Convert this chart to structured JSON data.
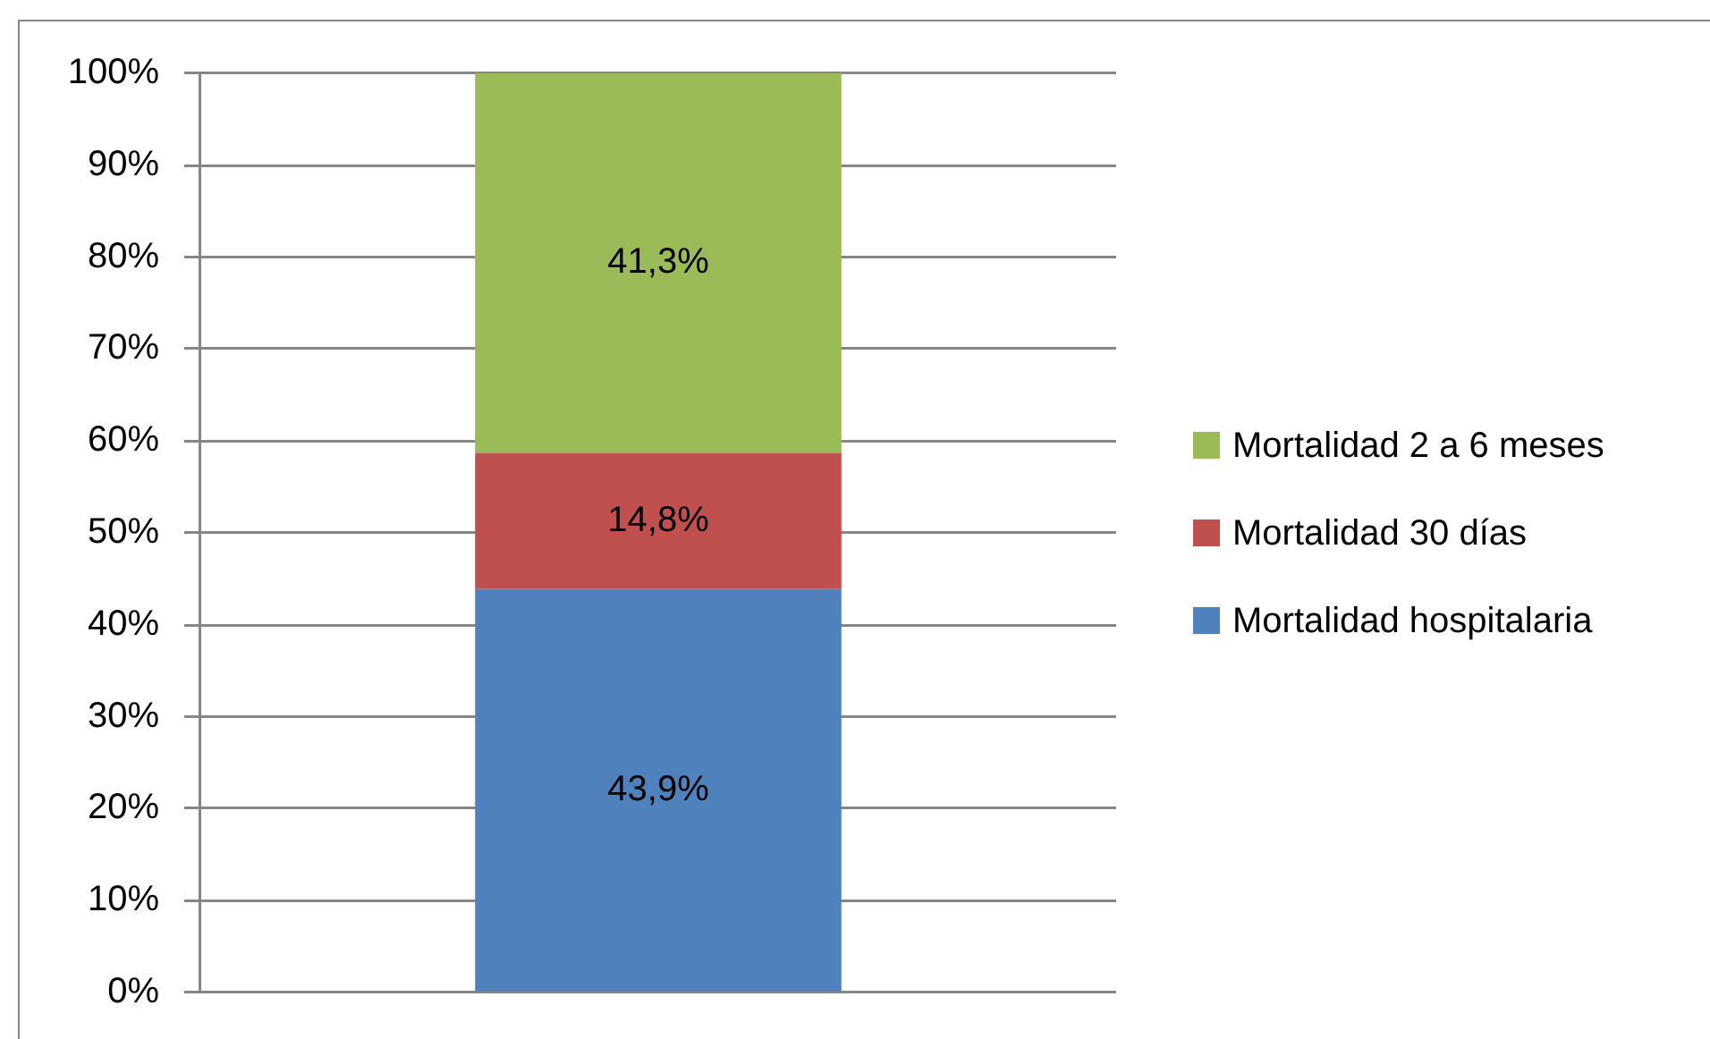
{
  "chart_data": {
    "type": "bar",
    "stacked": true,
    "categories": [
      null
    ],
    "series": [
      {
        "name": "Mortalidad hospitalaria",
        "color": "#4f81bd",
        "values": [
          43.9
        ],
        "value_labels": [
          "43,9%"
        ]
      },
      {
        "name": "Mortalidad 30 días",
        "color": "#c0504d",
        "values": [
          14.8
        ],
        "value_labels": [
          "14,8%"
        ]
      },
      {
        "name": "Mortalidad 2 a 6 meses",
        "color": "#9bbb59",
        "values": [
          41.3
        ],
        "value_labels": [
          "41,3%"
        ]
      }
    ],
    "ylim": [
      0,
      100
    ],
    "yticks": [
      {
        "value": 0,
        "label": "0%"
      },
      {
        "value": 10,
        "label": "10%"
      },
      {
        "value": 20,
        "label": "20%"
      },
      {
        "value": 30,
        "label": "30%"
      },
      {
        "value": 40,
        "label": "40%"
      },
      {
        "value": 50,
        "label": "50%"
      },
      {
        "value": 60,
        "label": "60%"
      },
      {
        "value": 70,
        "label": "70%"
      },
      {
        "value": 80,
        "label": "80%"
      },
      {
        "value": 90,
        "label": "90%"
      },
      {
        "value": 100,
        "label": "100%"
      }
    ],
    "grid": "y",
    "legend": "right"
  }
}
